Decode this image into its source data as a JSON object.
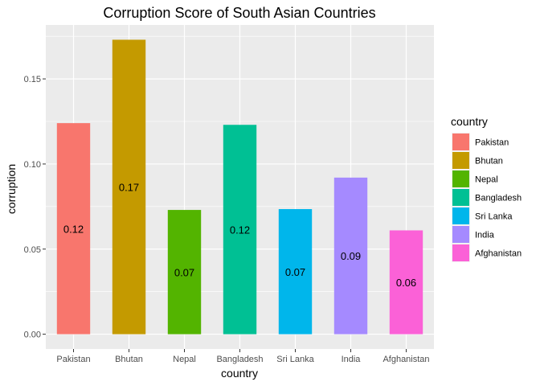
{
  "chart_data": {
    "type": "bar",
    "title": "Corruption Score of South Asian Countries",
    "xlabel": "country",
    "ylabel": "corruption",
    "categories": [
      "Pakistan",
      "Bhutan",
      "Nepal",
      "Bangladesh",
      "Sri Lanka",
      "India",
      "Afghanistan"
    ],
    "values": [
      0.124,
      0.173,
      0.073,
      0.123,
      0.0735,
      0.092,
      0.061
    ],
    "data_labels": [
      "0.12",
      "0.17",
      "0.07",
      "0.12",
      "0.07",
      "0.09",
      "0.06"
    ],
    "colors": [
      "#F8766D",
      "#C49A00",
      "#53B400",
      "#00C094",
      "#00B6EB",
      "#A58AFF",
      "#FB61D7"
    ],
    "ylim": [
      -0.0087,
      0.1817
    ],
    "yticks": [
      0.0,
      0.05,
      0.1,
      0.15
    ],
    "ytick_labels": [
      "0.00",
      "0.05",
      "0.10",
      "0.15"
    ],
    "grid": true,
    "legend": {
      "title": "country",
      "position": "right",
      "entries": [
        "Pakistan",
        "Bhutan",
        "Nepal",
        "Bangladesh",
        "Sri Lanka",
        "India",
        "Afghanistan"
      ]
    },
    "panel_background": "#EBEBEB",
    "grid_color": "#FFFFFF"
  }
}
